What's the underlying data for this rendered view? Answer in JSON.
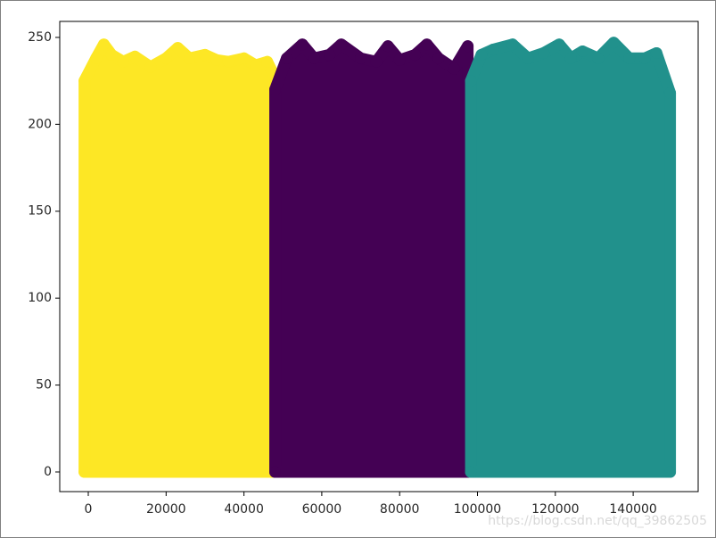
{
  "chart_data": {
    "type": "scatter",
    "xlim": [
      -7330,
      156700
    ],
    "ylim": [
      -11.3,
      259.2
    ],
    "xticks": [
      0,
      20000,
      40000,
      60000,
      80000,
      100000,
      120000,
      140000
    ],
    "yticks": [
      0,
      50,
      100,
      150,
      200,
      250
    ],
    "series": [
      {
        "color": "#fde725",
        "x": [
          -1000,
          -1000,
          2000,
          4000,
          6000,
          9000,
          12000,
          16000,
          20000,
          23000,
          26000,
          30000,
          33000,
          36000,
          40000,
          43000,
          46000,
          48400,
          48400
        ],
        "y": [
          0,
          225,
          238,
          246,
          240,
          236,
          239,
          233,
          238,
          244,
          238,
          240,
          237,
          236,
          238,
          234,
          236,
          225,
          0
        ]
      },
      {
        "color": "#440154",
        "x": [
          48000,
          48000,
          51000,
          55000,
          58000,
          62000,
          65000,
          70000,
          74000,
          77000,
          80000,
          84000,
          87000,
          90000,
          94000,
          97500,
          97500
        ],
        "y": [
          0,
          220,
          238,
          246,
          238,
          240,
          246,
          238,
          236,
          245,
          237,
          240,
          246,
          238,
          232,
          245,
          0
        ]
      },
      {
        "color": "#21918c",
        "x": [
          98300,
          98300,
          101000,
          104000,
          109000,
          113000,
          117000,
          121000,
          124000,
          127000,
          131000,
          135000,
          139000,
          143000,
          146000,
          149500,
          149500
        ],
        "y": [
          0,
          225,
          240,
          243,
          246,
          238,
          241,
          246,
          238,
          242,
          238,
          247,
          238,
          238,
          241,
          218,
          0
        ]
      }
    ],
    "watermark": "https://blog.csdn.net/qq_39862505"
  }
}
